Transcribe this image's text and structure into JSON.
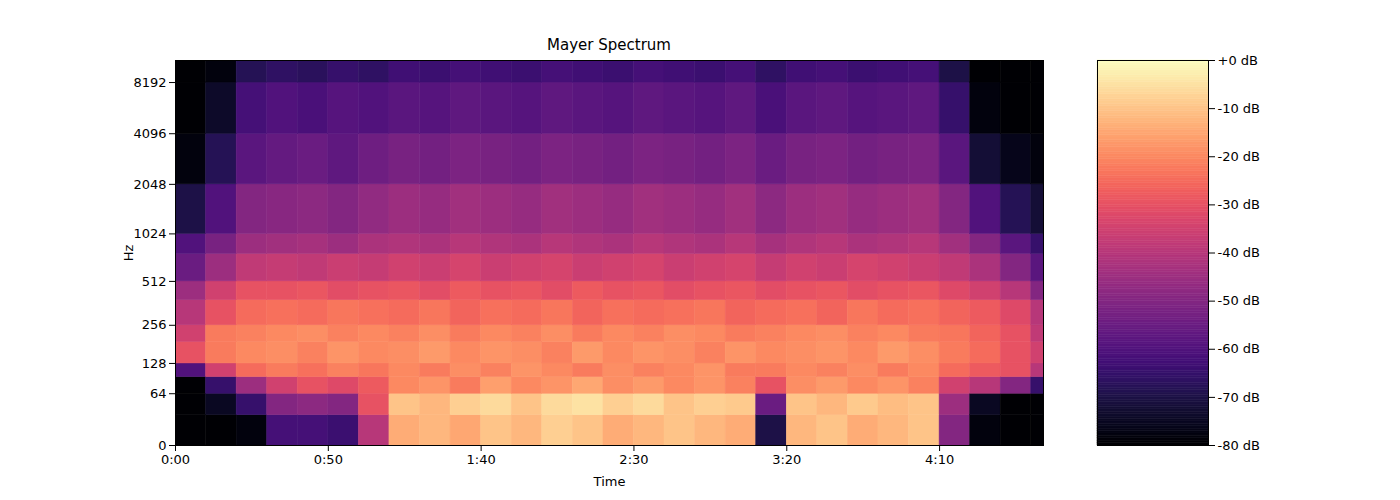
{
  "chart_data": {
    "type": "heatmap",
    "title": "Mayer Spectrum",
    "x_label": "Time",
    "y_label": "Hz",
    "log": "y",
    "color": "magma",
    "xlim": [
      0,
      284
    ],
    "xticks": [
      {
        "value": 0,
        "label": "0:00"
      },
      {
        "value": 50,
        "label": "0:50"
      },
      {
        "value": 100,
        "label": "1:40"
      },
      {
        "value": 150,
        "label": "2:30"
      },
      {
        "value": 200,
        "label": "3:20"
      },
      {
        "value": 250,
        "label": "4:10"
      }
    ],
    "ylim": [
      0,
      11025
    ],
    "yticks": [
      0,
      64,
      128,
      256,
      512,
      1024,
      2048,
      4096,
      8192
    ],
    "time_edges": [
      0,
      10,
      20,
      30,
      40,
      50,
      60,
      70,
      80,
      90,
      100,
      110,
      120,
      130,
      140,
      150,
      160,
      170,
      180,
      190,
      200,
      210,
      220,
      230,
      240,
      250,
      260,
      270,
      280,
      284
    ],
    "freq_edges": [
      0,
      32,
      64,
      96,
      128,
      192,
      256,
      384,
      512,
      768,
      1024,
      2048,
      4096,
      8192,
      11025
    ],
    "db": [
      [
        -80,
        -80,
        -78,
        -62,
        -62,
        -64,
        -40,
        -14,
        -12,
        -15,
        -10,
        -12,
        -8,
        -10,
        -14,
        -12,
        -10,
        -12,
        -14,
        -70,
        -12,
        -10,
        -14,
        -12,
        -10,
        -50,
        -78,
        -80,
        -80
      ],
      [
        -80,
        -75,
        -65,
        -50,
        -48,
        -50,
        -30,
        -10,
        -12,
        -8,
        -6,
        -10,
        -6,
        -5,
        -8,
        -6,
        -10,
        -8,
        -9,
        -55,
        -10,
        -12,
        -9,
        -11,
        -10,
        -45,
        -75,
        -80,
        -80
      ],
      [
        -80,
        -65,
        -45,
        -35,
        -30,
        -32,
        -28,
        -20,
        -18,
        -22,
        -16,
        -20,
        -18,
        -15,
        -19,
        -17,
        -20,
        -18,
        -21,
        -30,
        -19,
        -17,
        -20,
        -18,
        -21,
        -35,
        -40,
        -50,
        -65
      ],
      [
        -60,
        -35,
        -25,
        -22,
        -24,
        -21,
        -23,
        -20,
        -22,
        -19,
        -21,
        -18,
        -20,
        -22,
        -19,
        -21,
        -20,
        -18,
        -22,
        -22,
        -20,
        -21,
        -19,
        -22,
        -20,
        -25,
        -28,
        -30,
        -40
      ],
      [
        -30,
        -22,
        -20,
        -19,
        -21,
        -18,
        -20,
        -19,
        -17,
        -20,
        -18,
        -19,
        -21,
        -17,
        -20,
        -18,
        -19,
        -21,
        -18,
        -20,
        -19,
        -18,
        -20,
        -17,
        -19,
        -22,
        -25,
        -30,
        -35
      ],
      [
        -35,
        -22,
        -21,
        -20,
        -19,
        -21,
        -20,
        -21,
        -19,
        -22,
        -20,
        -21,
        -19,
        -22,
        -20,
        -21,
        -19,
        -20,
        -22,
        -21,
        -20,
        -19,
        -21,
        -20,
        -22,
        -23,
        -26,
        -30,
        -38
      ],
      [
        -40,
        -30,
        -25,
        -24,
        -25,
        -23,
        -24,
        -25,
        -23,
        -26,
        -24,
        -25,
        -23,
        -26,
        -24,
        -25,
        -24,
        -23,
        -26,
        -25,
        -24,
        -26,
        -23,
        -25,
        -24,
        -26,
        -28,
        -32,
        -40
      ],
      [
        -45,
        -35,
        -30,
        -30,
        -29,
        -31,
        -30,
        -29,
        -31,
        -28,
        -30,
        -29,
        -31,
        -28,
        -30,
        -29,
        -31,
        -30,
        -29,
        -31,
        -30,
        -29,
        -31,
        -30,
        -29,
        -32,
        -35,
        -40,
        -50
      ],
      [
        -55,
        -45,
        -38,
        -37,
        -38,
        -36,
        -37,
        -35,
        -36,
        -34,
        -36,
        -35,
        -34,
        -36,
        -35,
        -34,
        -36,
        -35,
        -34,
        -37,
        -35,
        -36,
        -34,
        -35,
        -36,
        -38,
        -42,
        -50,
        -58
      ],
      [
        -60,
        -52,
        -45,
        -44,
        -43,
        -45,
        -42,
        -41,
        -42,
        -40,
        -41,
        -42,
        -40,
        -41,
        -42,
        -40,
        -41,
        -42,
        -40,
        -43,
        -41,
        -40,
        -42,
        -41,
        -40,
        -44,
        -50,
        -58,
        -65
      ],
      [
        -70,
        -60,
        -50,
        -49,
        -48,
        -50,
        -47,
        -45,
        -46,
        -44,
        -45,
        -46,
        -44,
        -45,
        -46,
        -44,
        -45,
        -46,
        -44,
        -48,
        -45,
        -44,
        -46,
        -45,
        -44,
        -50,
        -60,
        -68,
        -72
      ],
      [
        -78,
        -68,
        -58,
        -56,
        -55,
        -57,
        -54,
        -52,
        -53,
        -51,
        -52,
        -53,
        -51,
        -52,
        -53,
        -51,
        -52,
        -53,
        -51,
        -55,
        -52,
        -51,
        -53,
        -52,
        -51,
        -58,
        -72,
        -76,
        -78
      ],
      [
        -80,
        -74,
        -62,
        -60,
        -61,
        -59,
        -60,
        -58,
        -59,
        -57,
        -58,
        -59,
        -57,
        -58,
        -59,
        -57,
        -58,
        -59,
        -57,
        -61,
        -58,
        -57,
        -59,
        -58,
        -57,
        -65,
        -78,
        -80,
        -80
      ],
      [
        -80,
        -78,
        -68,
        -66,
        -67,
        -65,
        -66,
        -63,
        -64,
        -62,
        -63,
        -64,
        -62,
        -63,
        -64,
        -62,
        -63,
        -64,
        -62,
        -66,
        -63,
        -62,
        -64,
        -63,
        -62,
        -70,
        -80,
        -80,
        -80
      ]
    ],
    "color_scale": {
      "range": [
        -80,
        0
      ],
      "ticks": [
        {
          "value": -80,
          "label": "-80 dB"
        },
        {
          "value": -70,
          "label": "-70 dB"
        },
        {
          "value": -60,
          "label": "-60 dB"
        },
        {
          "value": -50,
          "label": "-50 dB"
        },
        {
          "value": -40,
          "label": "-40 dB"
        },
        {
          "value": -30,
          "label": "-30 dB"
        },
        {
          "value": -20,
          "label": "-20 dB"
        },
        {
          "value": -10,
          "label": "-10 dB"
        },
        {
          "value": 0,
          "label": "+0 dB"
        }
      ]
    }
  }
}
